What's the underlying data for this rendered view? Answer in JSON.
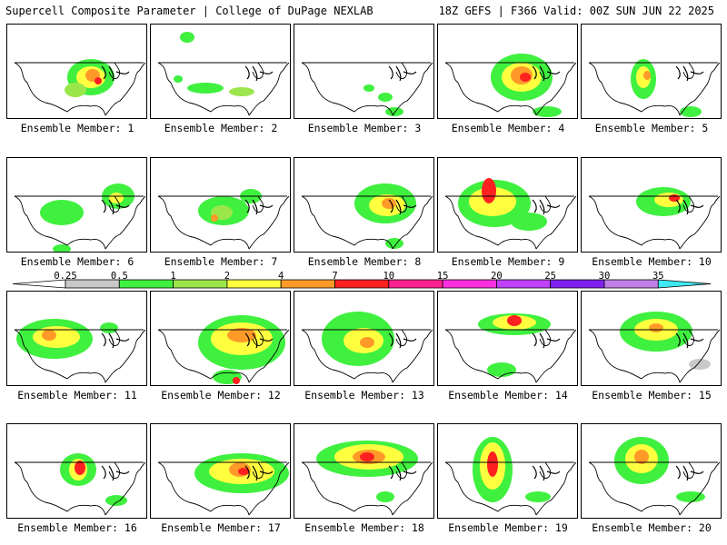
{
  "header": {
    "title": "Supercell Composite Parameter | College of DuPage NEXLAB",
    "run_info": "18Z GEFS | F366 Valid: 00Z SUN JUN 22 2025"
  },
  "colorbar": {
    "ticks": [
      "0.25",
      "0.5",
      "1",
      "2",
      "4",
      "7",
      "10",
      "15",
      "20",
      "25",
      "30",
      "35"
    ],
    "colors": [
      "#c8c8c8",
      "#3ff03f",
      "#9be64b",
      "#ffff40",
      "#ff9a28",
      "#ff2020",
      "#ff2090",
      "#ff30e0",
      "#c040ff",
      "#8020f0",
      "#c080e8",
      "#40e8f0"
    ]
  },
  "panels": [
    {
      "label": "Ensemble Member: 1"
    },
    {
      "label": "Ensemble Member: 2"
    },
    {
      "label": "Ensemble Member: 3"
    },
    {
      "label": "Ensemble Member: 4"
    },
    {
      "label": "Ensemble Member: 5"
    },
    {
      "label": "Ensemble Member: 6"
    },
    {
      "label": "Ensemble Member: 7"
    },
    {
      "label": "Ensemble Member: 8"
    },
    {
      "label": "Ensemble Member: 9"
    },
    {
      "label": "Ensemble Member: 10"
    },
    {
      "label": "Ensemble Member: 11"
    },
    {
      "label": "Ensemble Member: 12"
    },
    {
      "label": "Ensemble Member: 13"
    },
    {
      "label": "Ensemble Member: 14"
    },
    {
      "label": "Ensemble Member: 15"
    },
    {
      "label": "Ensemble Member: 16"
    },
    {
      "label": "Ensemble Member: 17"
    },
    {
      "label": "Ensemble Member: 18"
    },
    {
      "label": "Ensemble Member: 19"
    },
    {
      "label": "Ensemble Member: 20"
    }
  ]
}
